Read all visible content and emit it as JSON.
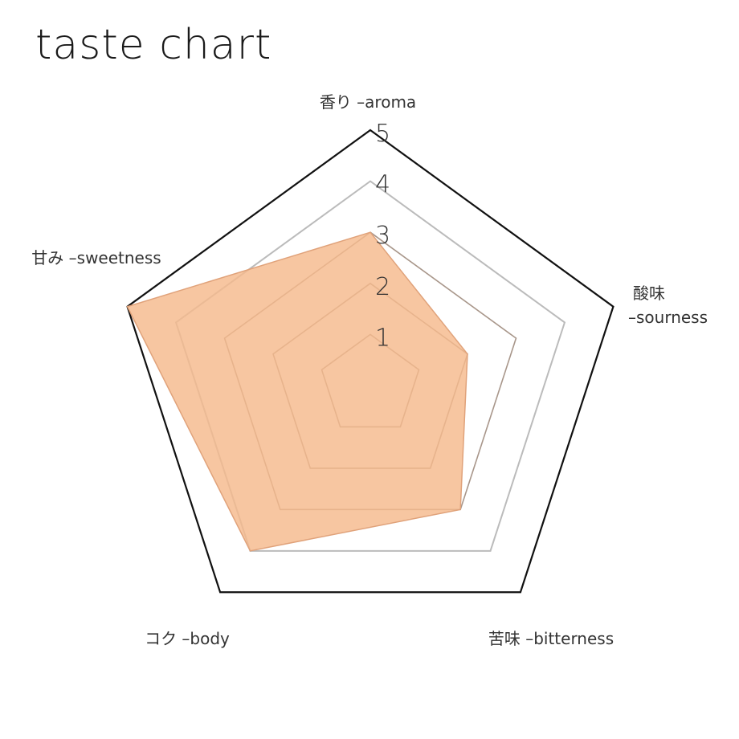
{
  "title": "taste chart",
  "chart_data": {
    "type": "radar",
    "title": "taste chart",
    "axes": [
      {
        "label_lines": [
          "香り –aroma"
        ],
        "value": 3
      },
      {
        "label_lines": [
          "酸味",
          "–sourness"
        ],
        "value": 2
      },
      {
        "label_lines": [
          "苦味 –bitterness"
        ],
        "value": 3
      },
      {
        "label_lines": [
          "コク –body"
        ],
        "value": 4
      },
      {
        "label_lines": [
          "甘み –sweetness"
        ],
        "value": 5
      }
    ],
    "ticks": [
      1,
      2,
      3,
      4,
      5
    ],
    "rlim": [
      0,
      5
    ],
    "colors": {
      "fill": "#f5b98c",
      "stroke": "#e0a27a",
      "inner_grid": "#a8968a",
      "outer_grid": "#bbbbbb",
      "frame": "#111111"
    }
  }
}
